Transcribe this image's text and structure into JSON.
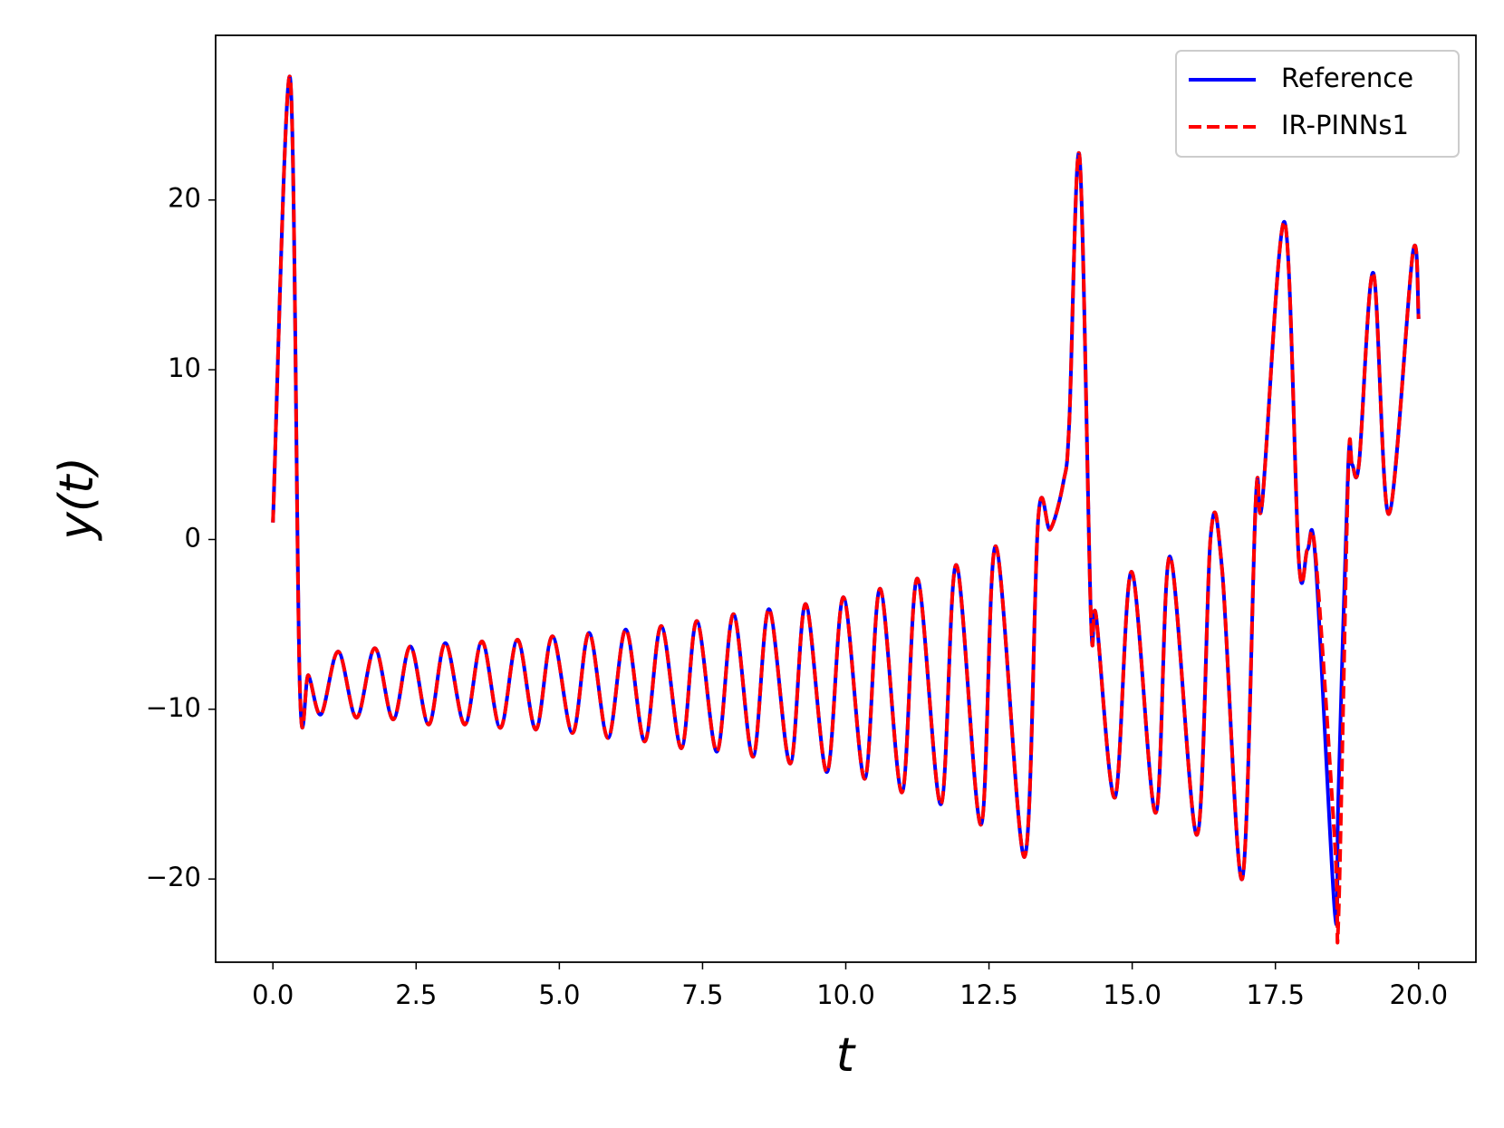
{
  "chart_data": {
    "type": "line",
    "xlabel": "t",
    "ylabel": "y(t)",
    "x": [
      0,
      0.3,
      0.47,
      0.62,
      0.84,
      1.14,
      1.46,
      1.78,
      2.1,
      2.4,
      2.72,
      3.01,
      3.35,
      3.65,
      3.97,
      4.27,
      4.59,
      4.88,
      5.23,
      5.52,
      5.85,
      6.16,
      6.49,
      6.78,
      7.13,
      7.4,
      7.75,
      8.04,
      8.38,
      8.66,
      9.03,
      9.3,
      9.67,
      9.96,
      10.33,
      10.6,
      10.98,
      11.25,
      11.66,
      11.93,
      12.36,
      12.62,
      13.12,
      13.36,
      13.57,
      13.8,
      13.9,
      14.08,
      14.28,
      14.37,
      14.7,
      14.99,
      15.41,
      15.66,
      16.13,
      16.37,
      16.57,
      16.92,
      17.16,
      17.27,
      17.66,
      17.91,
      18.06,
      18.2,
      18.54,
      18.6,
      18.77,
      18.84,
      18.96,
      19.21,
      19.48,
      19.9,
      20
    ],
    "series": [
      {
        "name": "Reference",
        "color": "#0000ff",
        "linestyle": "solid",
        "values": [
          1,
          27.2,
          -8.7,
          -8.0,
          -10.3,
          -6.6,
          -10.5,
          -6.4,
          -10.6,
          -6.3,
          -10.9,
          -6.1,
          -10.9,
          -6.0,
          -11.1,
          -5.9,
          -11.2,
          -5.7,
          -11.4,
          -5.5,
          -11.7,
          -5.3,
          -11.9,
          -5.1,
          -12.3,
          -4.8,
          -12.5,
          -4.4,
          -12.8,
          -4.1,
          -13.2,
          -3.8,
          -13.7,
          -3.4,
          -14.1,
          -2.9,
          -14.9,
          -2.3,
          -15.6,
          -1.5,
          -16.8,
          -0.4,
          -18.7,
          1.25,
          0.6,
          3.4,
          6.8,
          22.6,
          -4.6,
          -4.5,
          -15.2,
          -1.9,
          -16.1,
          -1.0,
          -17.4,
          0.2,
          -1.8,
          -20.0,
          2.5,
          2.2,
          18.7,
          -1.3,
          -0.6,
          -1.2,
          -22.1,
          -15,
          4.3,
          4.4,
          4.5,
          15.7,
          1.5,
          16.9,
          13
        ]
      },
      {
        "name": "IR-PINNs1",
        "color": "#ff0000",
        "linestyle": "dashed",
        "values": [
          1,
          27.2,
          -8.7,
          -8.0,
          -10.3,
          -6.6,
          -10.5,
          -6.4,
          -10.6,
          -6.3,
          -10.9,
          -6.1,
          -10.9,
          -6.0,
          -11.1,
          -5.9,
          -11.2,
          -5.7,
          -11.4,
          -5.5,
          -11.7,
          -5.3,
          -11.9,
          -5.1,
          -12.3,
          -4.8,
          -12.5,
          -4.4,
          -12.8,
          -4.1,
          -13.2,
          -3.8,
          -13.7,
          -3.4,
          -14.1,
          -2.9,
          -14.9,
          -2.3,
          -15.6,
          -1.5,
          -16.8,
          -0.4,
          -18.7,
          1.25,
          0.6,
          3.4,
          6.8,
          22.6,
          -4.6,
          -4.5,
          -15.2,
          -1.9,
          -16.1,
          -1.0,
          -17.4,
          0.2,
          -1.8,
          -20.0,
          2.5,
          2.2,
          18.7,
          -1.3,
          -0.6,
          -0.9,
          -18,
          -22.4,
          3.8,
          4.4,
          4.5,
          15.7,
          1.5,
          16.9,
          13
        ]
      }
    ],
    "xlim": [
      -1,
      21
    ],
    "ylim": [
      -24.9,
      29.7
    ],
    "xticks": [
      {
        "value": 0,
        "label": "0.0"
      },
      {
        "value": 2.5,
        "label": "2.5"
      },
      {
        "value": 5,
        "label": "5.0"
      },
      {
        "value": 7.5,
        "label": "7.5"
      },
      {
        "value": 10,
        "label": "10.0"
      },
      {
        "value": 12.5,
        "label": "12.5"
      },
      {
        "value": 15,
        "label": "15.0"
      },
      {
        "value": 17.5,
        "label": "17.5"
      },
      {
        "value": 20,
        "label": "20.0"
      }
    ],
    "yticks": [
      {
        "value": -20,
        "label": "−20"
      },
      {
        "value": -10,
        "label": "−10"
      },
      0,
      10,
      20
    ],
    "grid": false,
    "legend": "upper right"
  }
}
